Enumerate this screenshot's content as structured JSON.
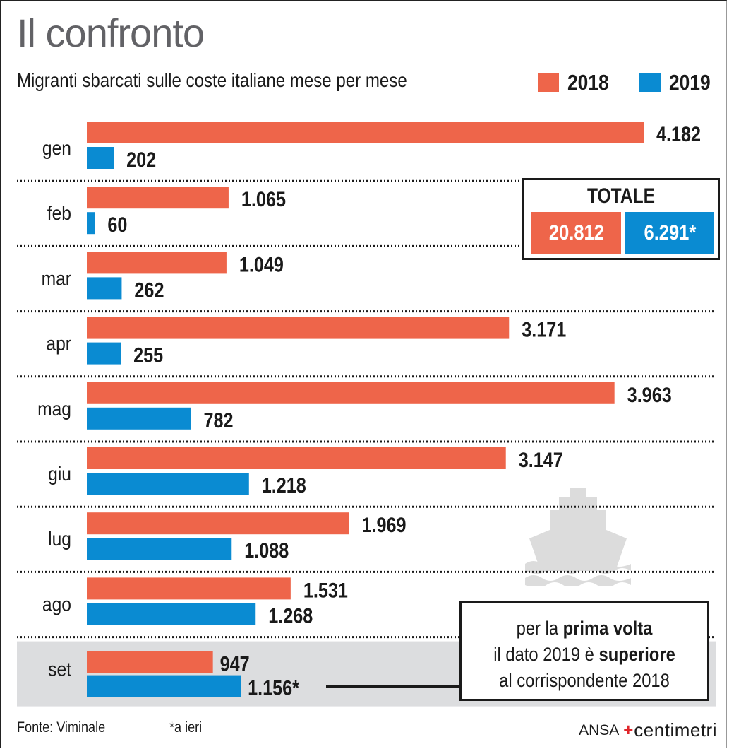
{
  "header": {
    "title": "Il confronto",
    "subtitle": "Migranti sbarcati sulle coste italiane mese per mese"
  },
  "legend": [
    {
      "label": "2018",
      "color": "#ee654a"
    },
    {
      "label": "2019",
      "color": "#0a8bd2"
    }
  ],
  "totale": {
    "heading": "TOTALE",
    "value_2018": "20.812",
    "value_2019": "6.291*"
  },
  "note": {
    "line1_pre": "per la ",
    "line1_bold": "prima volta",
    "line2_pre": "il dato 2019 è ",
    "line2_bold": "superiore",
    "line3": "al corrispondente 2018"
  },
  "footer": {
    "source": "Fonte: Viminale",
    "footnote": "*a ieri",
    "brand_ansa": "ANSA",
    "brand_centimetri": "centimetri"
  },
  "icons": {
    "ship": "ship-icon"
  },
  "chart_data": {
    "type": "bar",
    "orientation": "horizontal",
    "title": "Il confronto",
    "subtitle": "Migranti sbarcati sulle coste italiane mese per mese",
    "xlabel": "",
    "ylabel": "",
    "grid": false,
    "legend_position": "top-right",
    "categories": [
      "gen",
      "feb",
      "mar",
      "apr",
      "mag",
      "giu",
      "lug",
      "ago",
      "set"
    ],
    "series": [
      {
        "name": "2018",
        "color": "#ee654a",
        "values": [
          4182,
          1065,
          1049,
          3171,
          3963,
          3147,
          1969,
          1531,
          947
        ],
        "labels": [
          "4.182",
          "1.065",
          "1.049",
          "3.171",
          "3.963",
          "3.147",
          "1.969",
          "1.531",
          "947"
        ]
      },
      {
        "name": "2019",
        "color": "#0a8bd2",
        "values": [
          202,
          60,
          262,
          255,
          782,
          1218,
          1088,
          1268,
          1156
        ],
        "labels": [
          "202",
          "60",
          "262",
          "255",
          "782",
          "1.218",
          "1.088",
          "1.268",
          "1.156*"
        ]
      }
    ],
    "highlighted_category": "set",
    "xlim": [
      0,
      4182
    ]
  }
}
